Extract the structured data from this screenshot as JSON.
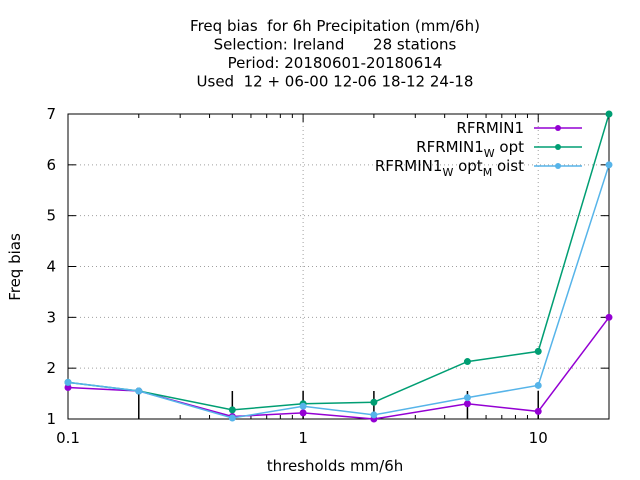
{
  "chart_data": {
    "type": "line",
    "title_lines": [
      "Freq bias  for 6h Precipitation (mm/6h)",
      "Selection: Ireland      28 stations",
      "Period: 20180601-20180614",
      "Used  12 + 06-00 12-06 18-12 24-18"
    ],
    "xlabel": "thresholds mm/6h",
    "ylabel": "Freq bias",
    "x_scale": "log",
    "xlim": [
      0.1,
      20
    ],
    "ylim": [
      1,
      7
    ],
    "x_ticks": [
      {
        "value": 0.1,
        "label": "0.1"
      },
      {
        "value": 1,
        "label": "1"
      },
      {
        "value": 10,
        "label": "10"
      }
    ],
    "y_ticks": [
      {
        "value": 1,
        "label": "1"
      },
      {
        "value": 2,
        "label": "2"
      },
      {
        "value": 3,
        "label": "3"
      },
      {
        "value": 4,
        "label": "4"
      },
      {
        "value": 5,
        "label": "5"
      },
      {
        "value": 6,
        "label": "6"
      },
      {
        "value": 7,
        "label": "7"
      }
    ],
    "grid": true,
    "legend_position": "top-right",
    "x": [
      0.1,
      0.2,
      0.5,
      1,
      2,
      5,
      10,
      20
    ],
    "series": [
      {
        "name": "RFRMIN1",
        "legend": {
          "main": "RFRMIN1",
          "parts": []
        },
        "color": "#9400d3",
        "values": [
          1.62,
          1.55,
          1.05,
          1.12,
          1.0,
          1.3,
          1.15,
          3.0
        ]
      },
      {
        "name": "RFRMIN1_W opt",
        "legend": {
          "main": "RFRMIN1",
          "parts": [
            {
              "sub": "W",
              "text": " opt"
            }
          ]
        },
        "color": "#009e73",
        "values": [
          1.72,
          1.55,
          1.18,
          1.3,
          1.33,
          2.13,
          2.33,
          7.0
        ]
      },
      {
        "name": "RFRMIN1_W opt_M oist",
        "legend": {
          "main": "RFRMIN1",
          "parts": [
            {
              "sub": "W",
              "text": " opt"
            },
            {
              "sub": "M",
              "text": " oist"
            }
          ]
        },
        "color": "#56b4e9",
        "values": [
          1.72,
          1.55,
          1.02,
          1.25,
          1.08,
          1.42,
          1.66,
          6.0
        ]
      }
    ]
  }
}
